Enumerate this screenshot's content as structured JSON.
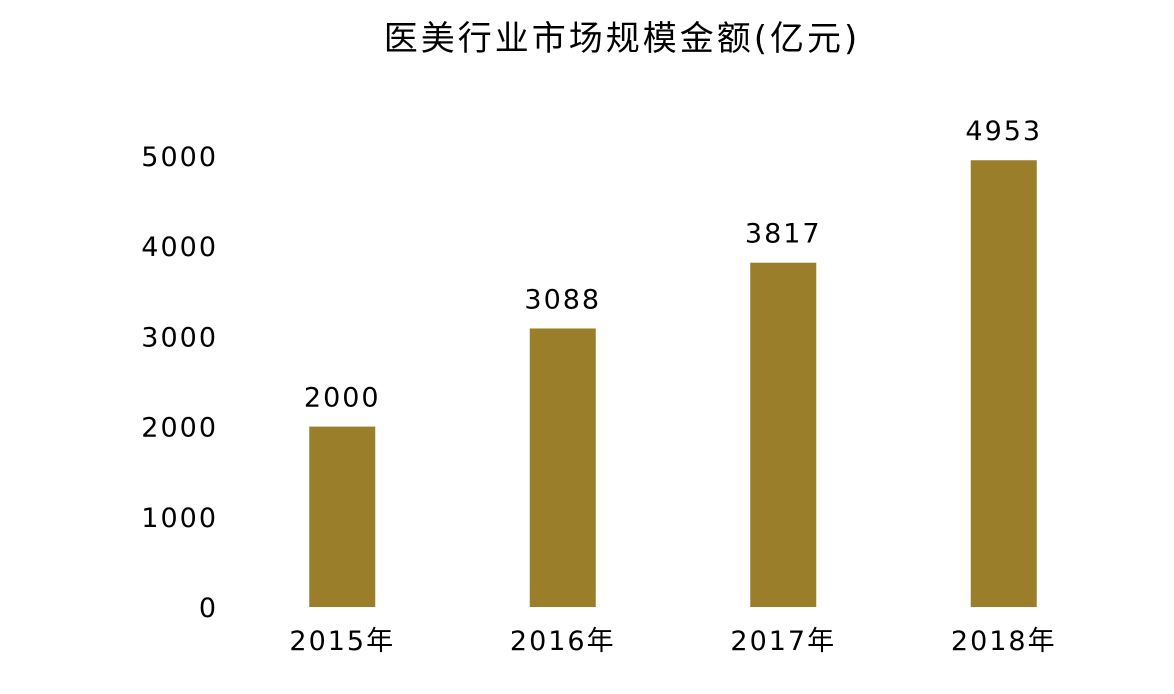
{
  "chart_data": {
    "type": "bar",
    "title": "医美行业市场规模金额(亿元)",
    "xlabel": "",
    "ylabel": "",
    "categories": [
      "2015年",
      "2016年",
      "2017年",
      "2018年"
    ],
    "values": [
      2000,
      3088,
      3817,
      4953
    ],
    "data_labels": [
      "2000",
      "3088",
      "3817",
      "4953"
    ],
    "ylim": [
      0,
      5000
    ],
    "yticks": [
      0,
      1000,
      2000,
      3000,
      4000,
      5000
    ],
    "ytick_labels": [
      "0",
      "1000",
      "2000",
      "3000",
      "4000",
      "5000"
    ],
    "bar_color": "#9b7e2a",
    "grid": false,
    "legend": "none"
  }
}
